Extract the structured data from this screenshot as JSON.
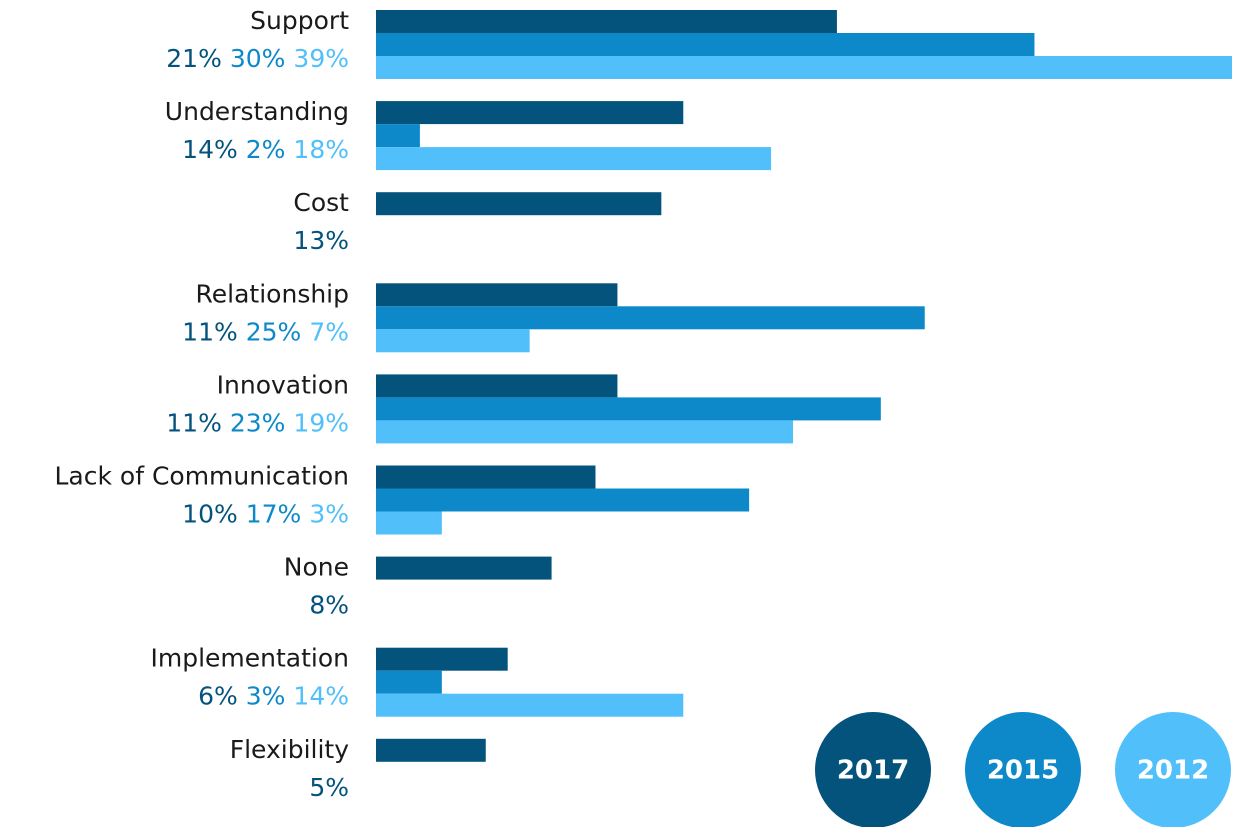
{
  "chart_data": {
    "type": "bar",
    "orientation": "horizontal",
    "categories": [
      "Support",
      "Understanding",
      "Cost",
      "Relationship",
      "Innovation",
      "Lack of Communication",
      "None",
      "Implementation",
      "Flexibility"
    ],
    "series": [
      {
        "name": "2017",
        "color": "#04537d",
        "values": [
          21,
          14,
          13,
          11,
          11,
          10,
          8,
          6,
          5
        ],
        "value_labels": [
          "21%",
          "14%",
          "13%",
          "11%",
          "11%",
          "10%",
          "8%",
          "6%",
          "5%"
        ]
      },
      {
        "name": "2015",
        "color": "#0d88c9",
        "values": [
          30,
          2,
          null,
          25,
          23,
          17,
          null,
          3,
          null
        ],
        "value_labels": [
          "30%",
          "2%",
          null,
          "25%",
          "23%",
          "17%",
          null,
          "3%",
          null
        ]
      },
      {
        "name": "2012",
        "color": "#51c0fa",
        "values": [
          39,
          18,
          null,
          7,
          19,
          3,
          null,
          14,
          null
        ],
        "value_labels": [
          "39%",
          "18%",
          null,
          "7%",
          "19%",
          "3%",
          null,
          "14%",
          null
        ]
      }
    ]
  }
}
